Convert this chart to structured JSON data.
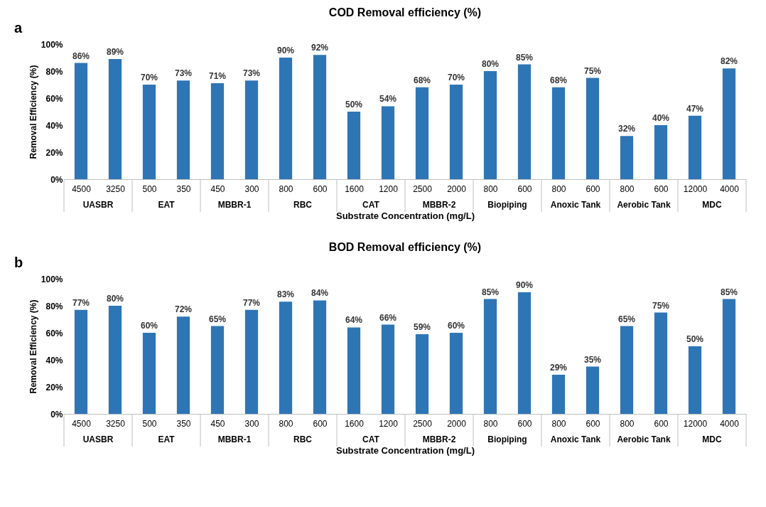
{
  "chart_data": [
    {
      "type": "bar",
      "title": "COD Removal efficiency (%)",
      "xlabel": "Substrate Concentration (mg/L)",
      "ylabel": "Removal Efficiency (%)",
      "categories": [
        "4500",
        "3250",
        "500",
        "350",
        "450",
        "300",
        "800",
        "600",
        "1600",
        "1200",
        "2500",
        "2000",
        "800",
        "600",
        "800",
        "600",
        "800",
        "600",
        "12000",
        "4000"
      ],
      "values": [
        86,
        89,
        70,
        73,
        71,
        73,
        90,
        92,
        50,
        54,
        68,
        70,
        80,
        85,
        68,
        75,
        32,
        40,
        47,
        82
      ],
      "value_labels": [
        "86%",
        "89%",
        "70%",
        "73%",
        "71%",
        "73%",
        "90%",
        "92%",
        "50%",
        "54%",
        "68%",
        "70%",
        "80%",
        "85%",
        "68%",
        "75%",
        "32%",
        "40%",
        "47%",
        "82%"
      ],
      "color": "#2e75b6",
      "ylim": [
        0,
        100
      ],
      "yticks": [
        {
          "value": 0,
          "label": "0%"
        },
        {
          "value": 20,
          "label": "20%"
        },
        {
          "value": 40,
          "label": "40%"
        },
        {
          "value": 60,
          "label": "60%"
        },
        {
          "value": 80,
          "label": "80%"
        },
        {
          "value": 100,
          "label": "100%"
        }
      ],
      "annotations": [
        "a",
        "UASBR",
        "EAT",
        "MBBR-1",
        "RBC",
        "CAT",
        "MBBR-2",
        "Biopiping",
        "Anoxic Tank",
        "Aerobic Tank",
        "MDC"
      ],
      "grid": false
    },
    {
      "type": "bar",
      "title": "BOD Removal efficiency (%)",
      "xlabel": "Substrate Concentration (mg/L)",
      "ylabel": "Removal Efficiency (%)",
      "categories": [
        "4500",
        "3250",
        "500",
        "350",
        "450",
        "300",
        "800",
        "600",
        "1600",
        "1200",
        "2500",
        "2000",
        "800",
        "600",
        "800",
        "600",
        "800",
        "600",
        "12000",
        "4000"
      ],
      "values": [
        77,
        80,
        60,
        72,
        65,
        77,
        83,
        84,
        64,
        66,
        59,
        60,
        85,
        90,
        29,
        35,
        65,
        75,
        50,
        85
      ],
      "value_labels": [
        "77%",
        "80%",
        "60%",
        "72%",
        "65%",
        "77%",
        "83%",
        "84%",
        "64%",
        "66%",
        "59%",
        "60%",
        "85%",
        "90%",
        "29%",
        "35%",
        "65%",
        "75%",
        "50%",
        "85%"
      ],
      "color": "#2e75b6",
      "ylim": [
        0,
        100
      ],
      "yticks": [
        {
          "value": 0,
          "label": "0%"
        },
        {
          "value": 20,
          "label": "20%"
        },
        {
          "value": 40,
          "label": "40%"
        },
        {
          "value": 60,
          "label": "60%"
        },
        {
          "value": 80,
          "label": "80%"
        },
        {
          "value": 100,
          "label": "100%"
        }
      ],
      "annotations": [
        "b",
        "UASBR",
        "EAT",
        "MBBR-1",
        "RBC",
        "CAT",
        "MBBR-2",
        "Biopiping",
        "Anoxic Tank",
        "Aerobic Tank",
        "MDC"
      ],
      "grid": false
    }
  ]
}
